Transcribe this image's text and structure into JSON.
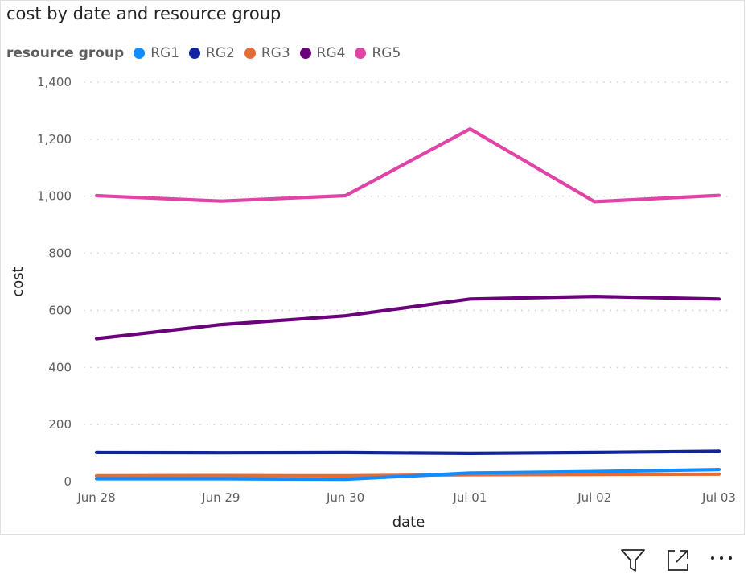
{
  "visual": {
    "title": "cost by date and resource group",
    "legend_title": "resource group",
    "footer_icons": [
      "filter-icon",
      "focus-mode-icon",
      "more-options-icon"
    ]
  },
  "chart_data": {
    "type": "line",
    "title": "cost by date and resource group",
    "xlabel": "date",
    "ylabel": "cost",
    "categories": [
      "Jun 28",
      "Jun 29",
      "Jun 30",
      "Jul 01",
      "Jul 02",
      "Jul 03"
    ],
    "ylim": [
      0,
      1400
    ],
    "yticks": [
      0,
      200,
      400,
      600,
      800,
      1000,
      1200,
      1400
    ],
    "ytick_labels": [
      "0",
      "200",
      "400",
      "600",
      "800",
      "1,000",
      "1,200",
      "1,400"
    ],
    "grid": true,
    "legend_position": "top-left",
    "series": [
      {
        "name": "RG1",
        "color": "#118DFF",
        "values": [
          10,
          10,
          8,
          30,
          35,
          42
        ]
      },
      {
        "name": "RG2",
        "color": "#12239E",
        "values": [
          102,
          101,
          102,
          99,
          102,
          106
        ]
      },
      {
        "name": "RG3",
        "color": "#E66C37",
        "values": [
          20,
          21,
          20,
          24,
          25,
          26
        ]
      },
      {
        "name": "RG4",
        "color": "#6B007B",
        "values": [
          501,
          550,
          581,
          640,
          649,
          640
        ]
      },
      {
        "name": "RG5",
        "color": "#E044A7",
        "values": [
          1002,
          983,
          1002,
          1236,
          981,
          1003
        ]
      }
    ]
  }
}
